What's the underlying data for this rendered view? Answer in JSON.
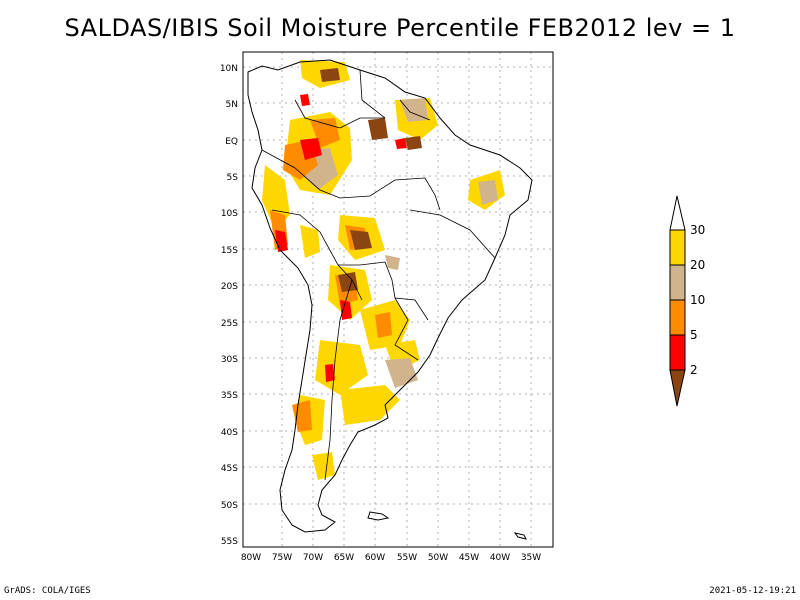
{
  "title": "SALDAS/IBIS Soil Moisture Percentile FEB2012 lev = 1",
  "map": {
    "lat_labels": [
      "10N",
      "5N",
      "EQ",
      "5S",
      "10S",
      "15S",
      "20S",
      "25S",
      "30S",
      "35S",
      "40S",
      "45S",
      "50S",
      "55S"
    ],
    "lon_labels": [
      "80W",
      "75W",
      "70W",
      "65W",
      "60W",
      "55W",
      "50W",
      "45W",
      "40W",
      "35W"
    ]
  },
  "legend": {
    "labels": [
      "30",
      "20",
      "10",
      "5",
      "2"
    ],
    "colors": {
      "top_arrow": "#ffffff",
      "band_20_30": "#ffd700",
      "band_10_20": "#d2b48c",
      "band_5_10": "#ff8c00",
      "band_2_5": "#ff0000",
      "bottom_arrow": "#8b4513"
    }
  },
  "footer": {
    "left": "GrADS: COLA/IGES",
    "right": "2021-05-12-19:21"
  }
}
